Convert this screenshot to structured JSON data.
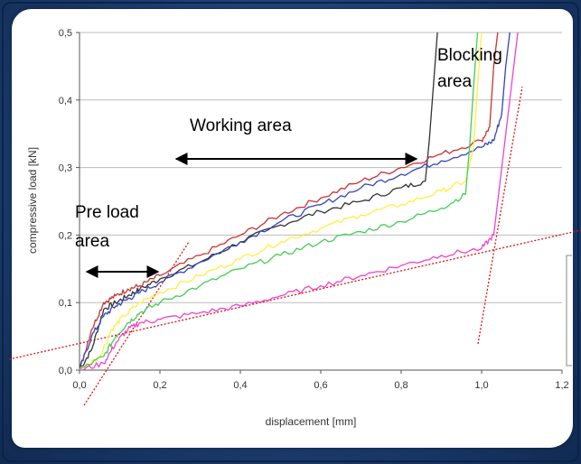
{
  "chart_data": {
    "type": "line",
    "xlabel": "displacement [mm]",
    "ylabel": "compressive load [kN]",
    "xlim": [
      0,
      1.2
    ],
    "ylim": [
      0,
      0.5
    ],
    "x_ticks": [
      "0,0",
      "0,2",
      "0,4",
      "0,6",
      "0,8",
      "1,0",
      "1,2"
    ],
    "y_ticks": [
      "0,0",
      "0,1",
      "0,2",
      "0,3",
      "0,4",
      "0,5"
    ],
    "grid": "horizontal",
    "series": [
      {
        "color": "#333333",
        "x": [
          0,
          0.03,
          0.06,
          0.09,
          0.12,
          0.15,
          0.2,
          0.3,
          0.4,
          0.5,
          0.6,
          0.7,
          0.8,
          0.86,
          0.87,
          0.88,
          0.89
        ],
        "y": [
          0,
          0.03,
          0.09,
          0.1,
          0.11,
          0.12,
          0.135,
          0.16,
          0.19,
          0.215,
          0.235,
          0.25,
          0.27,
          0.28,
          0.34,
          0.42,
          0.5
        ]
      },
      {
        "color": "#cc3333",
        "x": [
          0,
          0.03,
          0.06,
          0.09,
          0.12,
          0.15,
          0.2,
          0.3,
          0.4,
          0.5,
          0.6,
          0.7,
          0.8,
          0.9,
          1.0,
          1.02,
          1.03,
          1.04
        ],
        "y": [
          0,
          0.06,
          0.1,
          0.11,
          0.12,
          0.125,
          0.14,
          0.17,
          0.2,
          0.23,
          0.255,
          0.28,
          0.3,
          0.32,
          0.34,
          0.36,
          0.45,
          0.5
        ]
      },
      {
        "color": "#3344bb",
        "x": [
          0,
          0.03,
          0.06,
          0.09,
          0.12,
          0.15,
          0.2,
          0.3,
          0.4,
          0.5,
          0.6,
          0.7,
          0.8,
          0.9,
          1.0,
          1.03,
          1.05,
          1.06,
          1.07
        ],
        "y": [
          0,
          0.05,
          0.08,
          0.095,
          0.105,
          0.115,
          0.13,
          0.16,
          0.19,
          0.22,
          0.245,
          0.27,
          0.29,
          0.31,
          0.33,
          0.34,
          0.38,
          0.45,
          0.5
        ]
      },
      {
        "color": "#ffee44",
        "x": [
          0,
          0.05,
          0.08,
          0.11,
          0.15,
          0.2,
          0.3,
          0.4,
          0.5,
          0.6,
          0.7,
          0.8,
          0.9,
          0.96,
          0.98,
          0.99,
          1.0
        ],
        "y": [
          0,
          0.02,
          0.06,
          0.08,
          0.1,
          0.115,
          0.14,
          0.165,
          0.19,
          0.21,
          0.23,
          0.245,
          0.265,
          0.28,
          0.33,
          0.42,
          0.5
        ]
      },
      {
        "color": "#44cc55",
        "x": [
          0,
          0.06,
          0.09,
          0.12,
          0.15,
          0.2,
          0.3,
          0.4,
          0.5,
          0.6,
          0.7,
          0.8,
          0.9,
          0.96,
          0.97,
          0.98,
          0.99
        ],
        "y": [
          0,
          0.02,
          0.05,
          0.07,
          0.085,
          0.1,
          0.125,
          0.15,
          0.17,
          0.19,
          0.205,
          0.22,
          0.24,
          0.26,
          0.33,
          0.42,
          0.5
        ]
      },
      {
        "color": "#ee44cc",
        "x": [
          0,
          0.06,
          0.09,
          0.12,
          0.15,
          0.2,
          0.3,
          0.4,
          0.5,
          0.6,
          0.7,
          0.8,
          0.9,
          1.0,
          1.03,
          1.05,
          1.07,
          1.08,
          1.09
        ],
        "y": [
          0,
          0.01,
          0.04,
          0.06,
          0.07,
          0.075,
          0.085,
          0.095,
          0.11,
          0.125,
          0.14,
          0.155,
          0.17,
          0.18,
          0.2,
          0.3,
          0.4,
          0.45,
          0.5
        ]
      }
    ],
    "annotations": [
      "Working area",
      "Blocking",
      "area",
      "Pre load",
      "area"
    ]
  },
  "colors": {
    "reference_lines": "#dd1111",
    "arrows": "#000000",
    "grid": "#bbbbbb"
  }
}
